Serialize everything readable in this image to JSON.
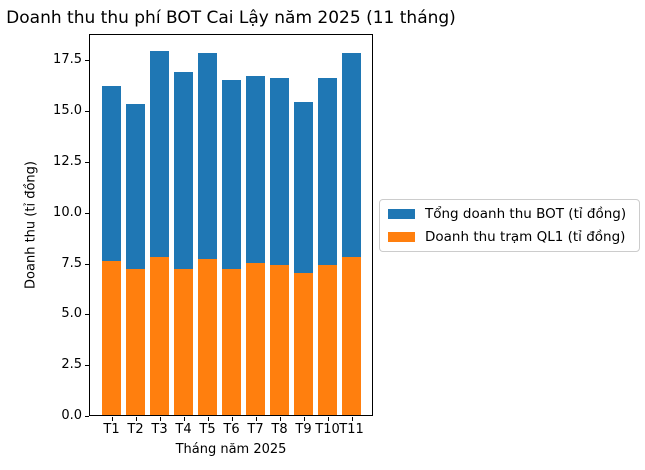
{
  "chart_data": {
    "type": "bar",
    "bar_mode": "overlay-from-zero",
    "title": "Doanh thu thu phí BOT Cai Lậy năm 2025 (11 tháng)",
    "xlabel": "Tháng năm 2025",
    "ylabel": "Doanh thu (tỉ đồng)",
    "categories": [
      "T1",
      "T2",
      "T3",
      "T4",
      "T5",
      "T6",
      "T7",
      "T8",
      "T9",
      "T10",
      "T11"
    ],
    "series": [
      {
        "name": "Tổng doanh thu BOT (tỉ đồng)",
        "color": "#1f77b4",
        "values": [
          16.2,
          15.3,
          17.9,
          16.9,
          17.8,
          16.5,
          16.7,
          16.6,
          15.4,
          16.6,
          17.8
        ]
      },
      {
        "name": "Doanh thu trạm QL1 (tỉ đồng)",
        "color": "#ff7f0e",
        "values": [
          7.6,
          7.2,
          7.8,
          7.2,
          7.7,
          7.2,
          7.5,
          7.4,
          7.0,
          7.4,
          7.8
        ]
      }
    ],
    "ylim": [
      0,
      18.7
    ],
    "yticks": [
      0.0,
      2.5,
      5.0,
      7.5,
      10.0,
      12.5,
      15.0,
      17.5
    ],
    "ytick_format_decimals": 1,
    "grid": false,
    "legend_position": "outside-center-right"
  },
  "colors": {
    "background": "#ffffff",
    "axis": "#000000",
    "legend_border": "#cccccc"
  }
}
